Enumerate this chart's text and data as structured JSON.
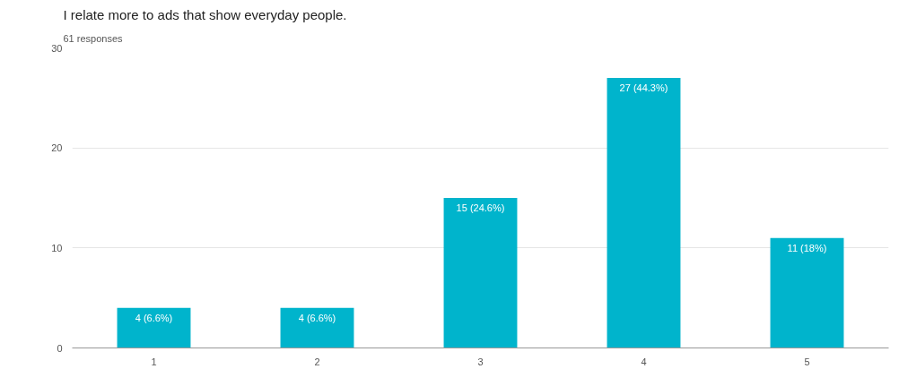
{
  "chart_data": {
    "type": "bar",
    "title": "I relate more to ads that show everyday people.",
    "subtitle": "61 responses",
    "categories": [
      "1",
      "2",
      "3",
      "4",
      "5"
    ],
    "values": [
      4,
      4,
      15,
      27,
      11
    ],
    "value_labels": [
      "4 (6.6%)",
      "4 (6.6%)",
      "15 (24.6%)",
      "27 (44.3%)",
      "11 (18%)"
    ],
    "color": "#00b4cc",
    "ylim": [
      0,
      30
    ],
    "yticks": [
      0,
      10,
      20,
      30
    ],
    "grid": "y"
  }
}
